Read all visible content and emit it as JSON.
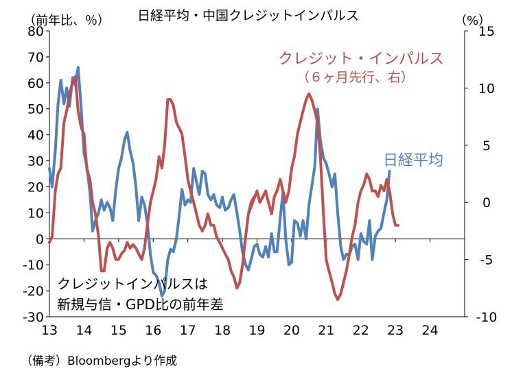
{
  "title": "日経平均・中国クレジットインパルス",
  "left_axis_unit": "（前年比、％）",
  "right_axis_unit": "（%）",
  "note_lines": [
    "クレジットインパルスは",
    "新規与信・GPD比の前年差"
  ],
  "source": "（備考）Bloombergより作成",
  "series_labels": {
    "credit_impulse_line1": "クレジット・インパルス",
    "credit_impulse_line2": "（６ヶ月先行、右）",
    "nikkei": "日経平均"
  },
  "colors": {
    "nikkei": "#4f81bd",
    "credit_impulse": "#c0504d",
    "axis": "#000000"
  },
  "chart_data": {
    "type": "line",
    "xlabel": "",
    "x_range": [
      2013.0,
      2025.0
    ],
    "x_ticks": [
      {
        "v": 2013,
        "label": "13"
      },
      {
        "v": 2014,
        "label": "14"
      },
      {
        "v": 2015,
        "label": "15"
      },
      {
        "v": 2016,
        "label": "16"
      },
      {
        "v": 2017,
        "label": "17"
      },
      {
        "v": 2018,
        "label": "18"
      },
      {
        "v": 2019,
        "label": "19"
      },
      {
        "v": 2020,
        "label": "20"
      },
      {
        "v": 2021,
        "label": "21"
      },
      {
        "v": 2022,
        "label": "22"
      },
      {
        "v": 2023,
        "label": "23"
      },
      {
        "v": 2024,
        "label": "24"
      }
    ],
    "y_left": {
      "range": [
        -30,
        80
      ],
      "ticks": [
        -30,
        -20,
        -10,
        0,
        10,
        20,
        30,
        40,
        50,
        60,
        70,
        80
      ]
    },
    "y_right": {
      "range": [
        -10,
        15
      ],
      "ticks": [
        -10,
        -5,
        0,
        5,
        10,
        15
      ]
    },
    "grid": false,
    "series": [
      {
        "name": "日経平均",
        "axis": "left",
        "points": [
          [
            2013.0,
            27
          ],
          [
            2013.08,
            20
          ],
          [
            2013.17,
            34
          ],
          [
            2013.25,
            52
          ],
          [
            2013.33,
            61
          ],
          [
            2013.42,
            52
          ],
          [
            2013.5,
            58
          ],
          [
            2013.58,
            51
          ],
          [
            2013.67,
            62
          ],
          [
            2013.75,
            59
          ],
          [
            2013.83,
            66
          ],
          [
            2013.92,
            50
          ],
          [
            2014.0,
            33
          ],
          [
            2014.08,
            28
          ],
          [
            2014.17,
            18
          ],
          [
            2014.25,
            3
          ],
          [
            2014.33,
            7
          ],
          [
            2014.42,
            10
          ],
          [
            2014.5,
            15
          ],
          [
            2014.58,
            11
          ],
          [
            2014.67,
            14
          ],
          [
            2014.75,
            12
          ],
          [
            2014.83,
            7
          ],
          [
            2014.92,
            19
          ],
          [
            2015.0,
            27
          ],
          [
            2015.08,
            31
          ],
          [
            2015.17,
            38
          ],
          [
            2015.25,
            41
          ],
          [
            2015.33,
            34
          ],
          [
            2015.42,
            29
          ],
          [
            2015.5,
            20
          ],
          [
            2015.58,
            7
          ],
          [
            2015.67,
            16
          ],
          [
            2015.75,
            13
          ],
          [
            2015.83,
            6
          ],
          [
            2015.92,
            -6
          ],
          [
            2016.0,
            -13
          ],
          [
            2016.08,
            -14
          ],
          [
            2016.17,
            -17
          ],
          [
            2016.25,
            -22
          ],
          [
            2016.33,
            -20
          ],
          [
            2016.42,
            -8
          ],
          [
            2016.5,
            -4
          ],
          [
            2016.58,
            -5
          ],
          [
            2016.67,
            0
          ],
          [
            2016.75,
            9
          ],
          [
            2016.83,
            19
          ],
          [
            2016.92,
            13
          ],
          [
            2017.0,
            15
          ],
          [
            2017.08,
            14
          ],
          [
            2017.17,
            27
          ],
          [
            2017.25,
            22
          ],
          [
            2017.33,
            17
          ],
          [
            2017.42,
            26
          ],
          [
            2017.5,
            25
          ],
          [
            2017.58,
            17
          ],
          [
            2017.67,
            15
          ],
          [
            2017.75,
            17
          ],
          [
            2017.83,
            13
          ],
          [
            2017.92,
            12
          ],
          [
            2018.0,
            16
          ],
          [
            2018.08,
            11
          ],
          [
            2018.17,
            12
          ],
          [
            2018.25,
            15
          ],
          [
            2018.33,
            17
          ],
          [
            2018.42,
            10
          ],
          [
            2018.5,
            3
          ],
          [
            2018.58,
            -5
          ],
          [
            2018.67,
            -10
          ],
          [
            2018.75,
            -12
          ],
          [
            2018.83,
            -8
          ],
          [
            2018.92,
            -3
          ],
          [
            2019.0,
            -2
          ],
          [
            2019.08,
            -6
          ],
          [
            2019.17,
            -7
          ],
          [
            2019.25,
            -3
          ],
          [
            2019.33,
            -7
          ],
          [
            2019.42,
            2
          ],
          [
            2019.5,
            -5
          ],
          [
            2019.58,
            -5
          ],
          [
            2019.67,
            8
          ],
          [
            2019.75,
            18
          ],
          [
            2019.83,
            0
          ],
          [
            2019.92,
            -10
          ],
          [
            2020.0,
            -9
          ],
          [
            2020.08,
            7
          ],
          [
            2020.17,
            6
          ],
          [
            2020.25,
            1
          ],
          [
            2020.33,
            7
          ],
          [
            2020.42,
            0
          ],
          [
            2020.5,
            13
          ],
          [
            2020.58,
            20
          ],
          [
            2020.67,
            28
          ],
          [
            2020.75,
            50
          ],
          [
            2020.83,
            38
          ],
          [
            2020.92,
            31
          ],
          [
            2021.0,
            29
          ],
          [
            2021.08,
            25
          ],
          [
            2021.17,
            20
          ],
          [
            2021.25,
            25
          ],
          [
            2021.33,
            10
          ],
          [
            2021.42,
            -3
          ],
          [
            2021.5,
            -8
          ],
          [
            2021.58,
            -6
          ],
          [
            2021.67,
            -6
          ],
          [
            2021.75,
            -3
          ],
          [
            2021.83,
            -2
          ],
          [
            2021.92,
            -8
          ],
          [
            2022.0,
            2
          ],
          [
            2022.08,
            -1
          ],
          [
            2022.17,
            -2
          ],
          [
            2022.25,
            7
          ],
          [
            2022.33,
            -8
          ],
          [
            2022.42,
            1
          ],
          [
            2022.5,
            3
          ],
          [
            2022.58,
            4
          ],
          [
            2022.67,
            10
          ],
          [
            2022.75,
            15
          ],
          [
            2022.83,
            26
          ]
        ]
      },
      {
        "name": "クレジット・インパルス（６ヶ月先行、右）",
        "axis": "right",
        "points": [
          [
            2013.0,
            -3.5
          ],
          [
            2013.08,
            -3
          ],
          [
            2013.17,
            1
          ],
          [
            2013.25,
            2.5
          ],
          [
            2013.33,
            3
          ],
          [
            2013.42,
            7
          ],
          [
            2013.5,
            8
          ],
          [
            2013.58,
            9.5
          ],
          [
            2013.67,
            10.5
          ],
          [
            2013.75,
            11
          ],
          [
            2013.83,
            8
          ],
          [
            2013.92,
            6.5
          ],
          [
            2014.0,
            6
          ],
          [
            2014.08,
            3
          ],
          [
            2014.17,
            2
          ],
          [
            2014.25,
            0
          ],
          [
            2014.33,
            -1
          ],
          [
            2014.42,
            -3
          ],
          [
            2014.5,
            -6
          ],
          [
            2014.58,
            -6
          ],
          [
            2014.67,
            -4
          ],
          [
            2014.75,
            -3.5
          ],
          [
            2014.83,
            -4
          ],
          [
            2014.92,
            -5
          ],
          [
            2015.0,
            -5
          ],
          [
            2015.08,
            -4.5
          ],
          [
            2015.17,
            -4.2
          ],
          [
            2015.25,
            -3.5
          ],
          [
            2015.33,
            -4
          ],
          [
            2015.42,
            -3.7
          ],
          [
            2015.5,
            -4
          ],
          [
            2015.58,
            -4.5
          ],
          [
            2015.67,
            -5
          ],
          [
            2015.75,
            -4
          ],
          [
            2015.83,
            -2
          ],
          [
            2015.92,
            0
          ],
          [
            2016.0,
            1
          ],
          [
            2016.08,
            2
          ],
          [
            2016.17,
            4
          ],
          [
            2016.25,
            3
          ],
          [
            2016.33,
            5
          ],
          [
            2016.42,
            9
          ],
          [
            2016.5,
            9
          ],
          [
            2016.58,
            8.5
          ],
          [
            2016.67,
            7
          ],
          [
            2016.75,
            6.5
          ],
          [
            2016.83,
            6
          ],
          [
            2016.92,
            4
          ],
          [
            2017.0,
            2
          ],
          [
            2017.08,
            1
          ],
          [
            2017.17,
            0
          ],
          [
            2017.25,
            -1
          ],
          [
            2017.33,
            -2
          ],
          [
            2017.42,
            -2.5
          ],
          [
            2017.5,
            -2
          ],
          [
            2017.58,
            -1
          ],
          [
            2017.67,
            -2
          ],
          [
            2017.75,
            -2
          ],
          [
            2017.83,
            -3
          ],
          [
            2017.92,
            -3.5
          ],
          [
            2018.0,
            -4
          ],
          [
            2018.08,
            -4.5
          ],
          [
            2018.17,
            -5
          ],
          [
            2018.25,
            -6
          ],
          [
            2018.33,
            -6.5
          ],
          [
            2018.42,
            -7.5
          ],
          [
            2018.5,
            -7
          ],
          [
            2018.58,
            -5.5
          ],
          [
            2018.67,
            -3
          ],
          [
            2018.75,
            -1
          ],
          [
            2018.83,
            0
          ],
          [
            2018.92,
            0.5
          ],
          [
            2018.75,
            -1
          ],
          [
            2019.0,
            1
          ],
          [
            2019.08,
            0
          ],
          [
            2019.17,
            0.5
          ],
          [
            2019.25,
            1
          ],
          [
            2019.33,
            0
          ],
          [
            2019.42,
            -1
          ],
          [
            2019.5,
            0.5
          ],
          [
            2019.58,
            1
          ],
          [
            2019.67,
            2
          ],
          [
            2019.75,
            1
          ],
          [
            2019.83,
            0
          ],
          [
            2019.92,
            1
          ],
          [
            2020.0,
            3
          ],
          [
            2020.08,
            4
          ],
          [
            2020.17,
            6
          ],
          [
            2020.25,
            7
          ],
          [
            2020.33,
            8
          ],
          [
            2020.42,
            9
          ],
          [
            2020.5,
            9.5
          ],
          [
            2020.58,
            9
          ],
          [
            2020.67,
            8
          ],
          [
            2020.75,
            7
          ],
          [
            2020.83,
            4
          ],
          [
            2020.92,
            -1
          ],
          [
            2021.0,
            -5
          ],
          [
            2021.08,
            -6
          ],
          [
            2021.17,
            -7
          ],
          [
            2021.25,
            -8
          ],
          [
            2021.33,
            -8.5
          ],
          [
            2021.42,
            -8
          ],
          [
            2021.5,
            -7
          ],
          [
            2021.58,
            -6
          ],
          [
            2021.67,
            -4.5
          ],
          [
            2021.75,
            -3
          ],
          [
            2021.83,
            -2
          ],
          [
            2021.92,
            0
          ],
          [
            2022.0,
            1
          ],
          [
            2022.08,
            1.5
          ],
          [
            2022.17,
            2.5
          ],
          [
            2022.25,
            2
          ],
          [
            2022.33,
            1
          ],
          [
            2022.42,
            1
          ],
          [
            2022.5,
            0.5
          ],
          [
            2022.58,
            1.5
          ],
          [
            2022.67,
            1
          ],
          [
            2022.75,
            2
          ],
          [
            2022.83,
            1
          ],
          [
            2022.92,
            -1
          ],
          [
            2023.0,
            -2
          ],
          [
            2023.08,
            -2
          ]
        ]
      }
    ]
  }
}
